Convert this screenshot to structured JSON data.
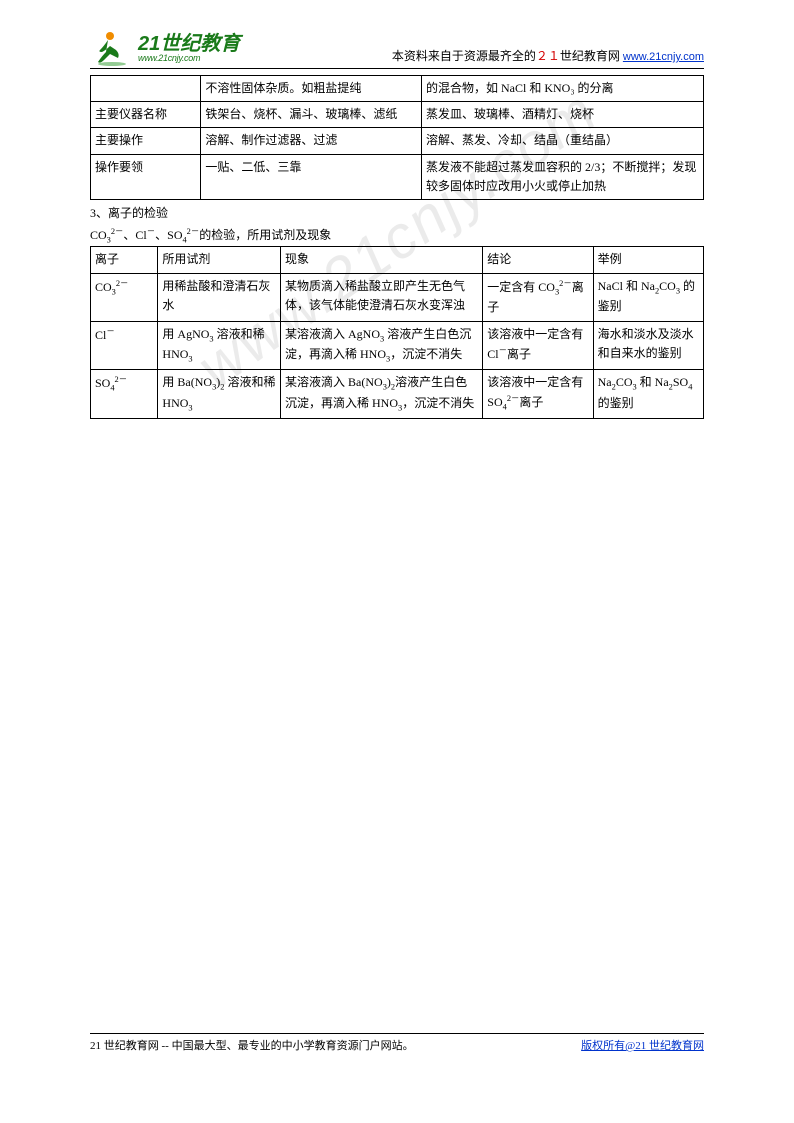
{
  "header": {
    "brand_big": "21世纪教育",
    "brand_small": "www.21cnjy.com",
    "tagline_prefix": "本资料来自于资源最齐全的",
    "tagline_red": "２１",
    "tagline_mid": "世纪教育网",
    "tagline_url": "www.21cnjy.com"
  },
  "table1": {
    "rows": [
      [
        "",
        "不溶性固体杂质。如粗盐提纯",
        "的混合物，如 NaCl 和 KNO₃ 的分离"
      ],
      [
        "主要仪器名称",
        "铁架台、烧杯、漏斗、玻璃棒、滤纸",
        "蒸发皿、玻璃棒、酒精灯、烧杯"
      ],
      [
        "主要操作",
        "溶解、制作过滤器、过滤",
        "溶解、蒸发、冷却、结晶（重结晶）"
      ],
      [
        "操作要领",
        "一贴、二低、三靠",
        "蒸发液不能超过蒸发皿容积的 2/3；不断搅拌；发现较多固体时应改用小火或停止加热"
      ]
    ]
  },
  "section_titles": {
    "s3": "3、离子的检验",
    "s3_sub": "CO₃²⁻、Cl⁻、SO₄²⁻的检验，所用试剂及现象"
  },
  "table2": {
    "header": [
      "离子",
      "所用试剂",
      "现象",
      "结论",
      "举例"
    ],
    "rows": [
      {
        "ion": "CO₃²⁻",
        "reagent": "用稀盐酸和澄清石灰水",
        "phenomenon": "某物质滴入稀盐酸立即产生无色气体，该气体能使澄清石灰水变浑浊",
        "conclusion": "一定含有 CO₃²⁻离子",
        "example": "NaCl 和 Na₂CO₃ 的鉴别"
      },
      {
        "ion": "Cl⁻",
        "reagent": "用 AgNO₃ 溶液和稀 HNO₃",
        "phenomenon": "某溶液滴入 AgNO₃ 溶液产生白色沉淀，再滴入稀 HNO₃，沉淀不消失",
        "conclusion": "该溶液中一定含有 Cl⁻离子",
        "example": "海水和淡水及淡水和自来水的鉴别"
      },
      {
        "ion": "SO₄²⁻",
        "reagent": "用 Ba(NO₃)₂ 溶液和稀 HNO₃",
        "phenomenon": "某溶液滴入 Ba(NO₃)₂溶液产生白色沉淀，再滴入稀 HNO₃，沉淀不消失",
        "conclusion": "该溶液中一定含有 SO₄²⁻离子",
        "example": "Na₂CO₃ 和 Na₂SO₄ 的鉴别"
      }
    ]
  },
  "watermark": "www.21cnjy.com",
  "footer": {
    "left_prefix": "21 世纪教育网 -- 中国最大型、最专业的中小学教育资源门户网站。",
    "right_text": "版权所有@21 世纪教育网"
  },
  "colors": {
    "red": "#d40000",
    "link": "#0033cc",
    "brand": "#1a7a1a",
    "watermark": "rgba(0,0,0,0.08)"
  }
}
